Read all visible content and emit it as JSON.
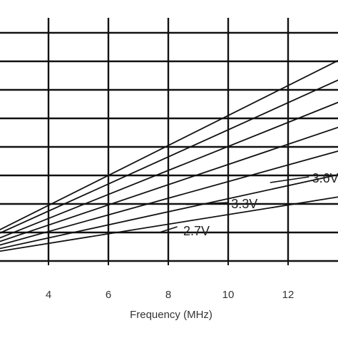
{
  "chart_data": {
    "type": "line",
    "title": "",
    "xlabel": "Frequency (MHz)",
    "ylabel": "",
    "xlim": [
      2,
      14
    ],
    "ylim": [
      0,
      10
    ],
    "grid": true,
    "x_ticks": [
      4,
      6,
      8,
      10,
      12
    ],
    "y_gridlines": [
      1,
      2,
      3,
      4,
      5,
      6,
      7,
      8,
      9
    ],
    "series": [
      {
        "x": [
          2,
          14
        ],
        "y": [
          0.28,
          2.3
        ]
      },
      {
        "x": [
          2,
          14
        ],
        "y": [
          0.35,
          3.1
        ]
      },
      {
        "x": [
          2,
          14
        ],
        "y": [
          0.45,
          3.95
        ]
      },
      {
        "x": [
          2,
          14
        ],
        "y": [
          0.55,
          4.8
        ]
      },
      {
        "x": [
          2,
          14
        ],
        "y": [
          0.65,
          5.7
        ]
      },
      {
        "x": [
          2,
          14
        ],
        "y": [
          0.8,
          6.5
        ]
      },
      {
        "x": [
          2,
          14
        ],
        "y": [
          0.9,
          7.2
        ]
      }
    ],
    "annotations": [
      {
        "text": "2.7V",
        "x": 8.5,
        "y": 1.05,
        "line_from": [
          7.7,
          1.0
        ],
        "line_to": [
          8.3,
          1.2
        ]
      },
      {
        "text": "3.3V",
        "x": 10.1,
        "y": 2.0,
        "line_from": [
          8.6,
          1.98
        ],
        "line_to": [
          10.0,
          2.05
        ]
      },
      {
        "text": "3.6V",
        "x": 12.8,
        "y": 2.9,
        "line_from": [
          11.4,
          2.75
        ],
        "line_to": [
          12.7,
          2.95
        ]
      }
    ]
  },
  "colors": {
    "line": "#111111",
    "grid": "#111111",
    "text": "#333333"
  }
}
